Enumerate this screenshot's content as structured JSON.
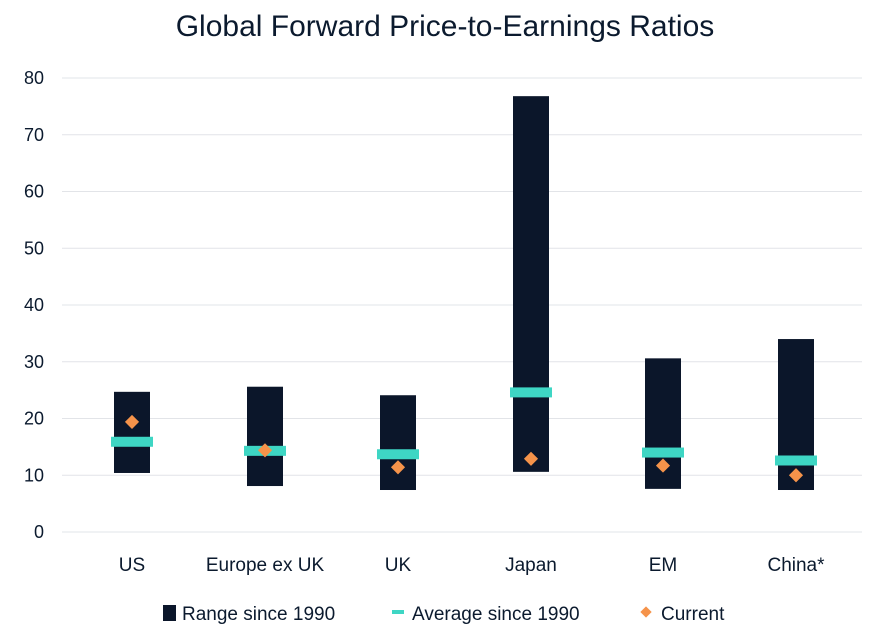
{
  "chart_data": {
    "type": "range-bar",
    "title": "Global Forward Price-to-Earnings Ratios",
    "xlabel": "",
    "ylabel": "",
    "ylim": [
      0,
      80
    ],
    "yticks": [
      "0",
      "10",
      "20",
      "30",
      "40",
      "50",
      "60",
      "70",
      "80"
    ],
    "categories": [
      "US",
      "Europe ex UK",
      "UK",
      "Japan",
      "EM",
      "China*"
    ],
    "series": [
      {
        "name": "Range since 1990",
        "low": [
          10.4,
          8.1,
          7.4,
          10.6,
          7.6,
          7.4
        ],
        "high": [
          24.7,
          25.6,
          24.1,
          76.8,
          30.6,
          34.0
        ]
      },
      {
        "name": "Average since 1990",
        "values": [
          15.9,
          14.3,
          13.7,
          24.6,
          14.0,
          12.6
        ]
      },
      {
        "name": "Current",
        "values": [
          19.4,
          14.4,
          11.4,
          12.9,
          11.7,
          10.0
        ]
      }
    ],
    "grid": true,
    "legend_position": "bottom",
    "colors": {
      "range": "#0b162a",
      "average": "#3ed6c4",
      "current": "#f5934a",
      "text": "#0b1a2e",
      "grid": "#e2e4e8"
    }
  }
}
